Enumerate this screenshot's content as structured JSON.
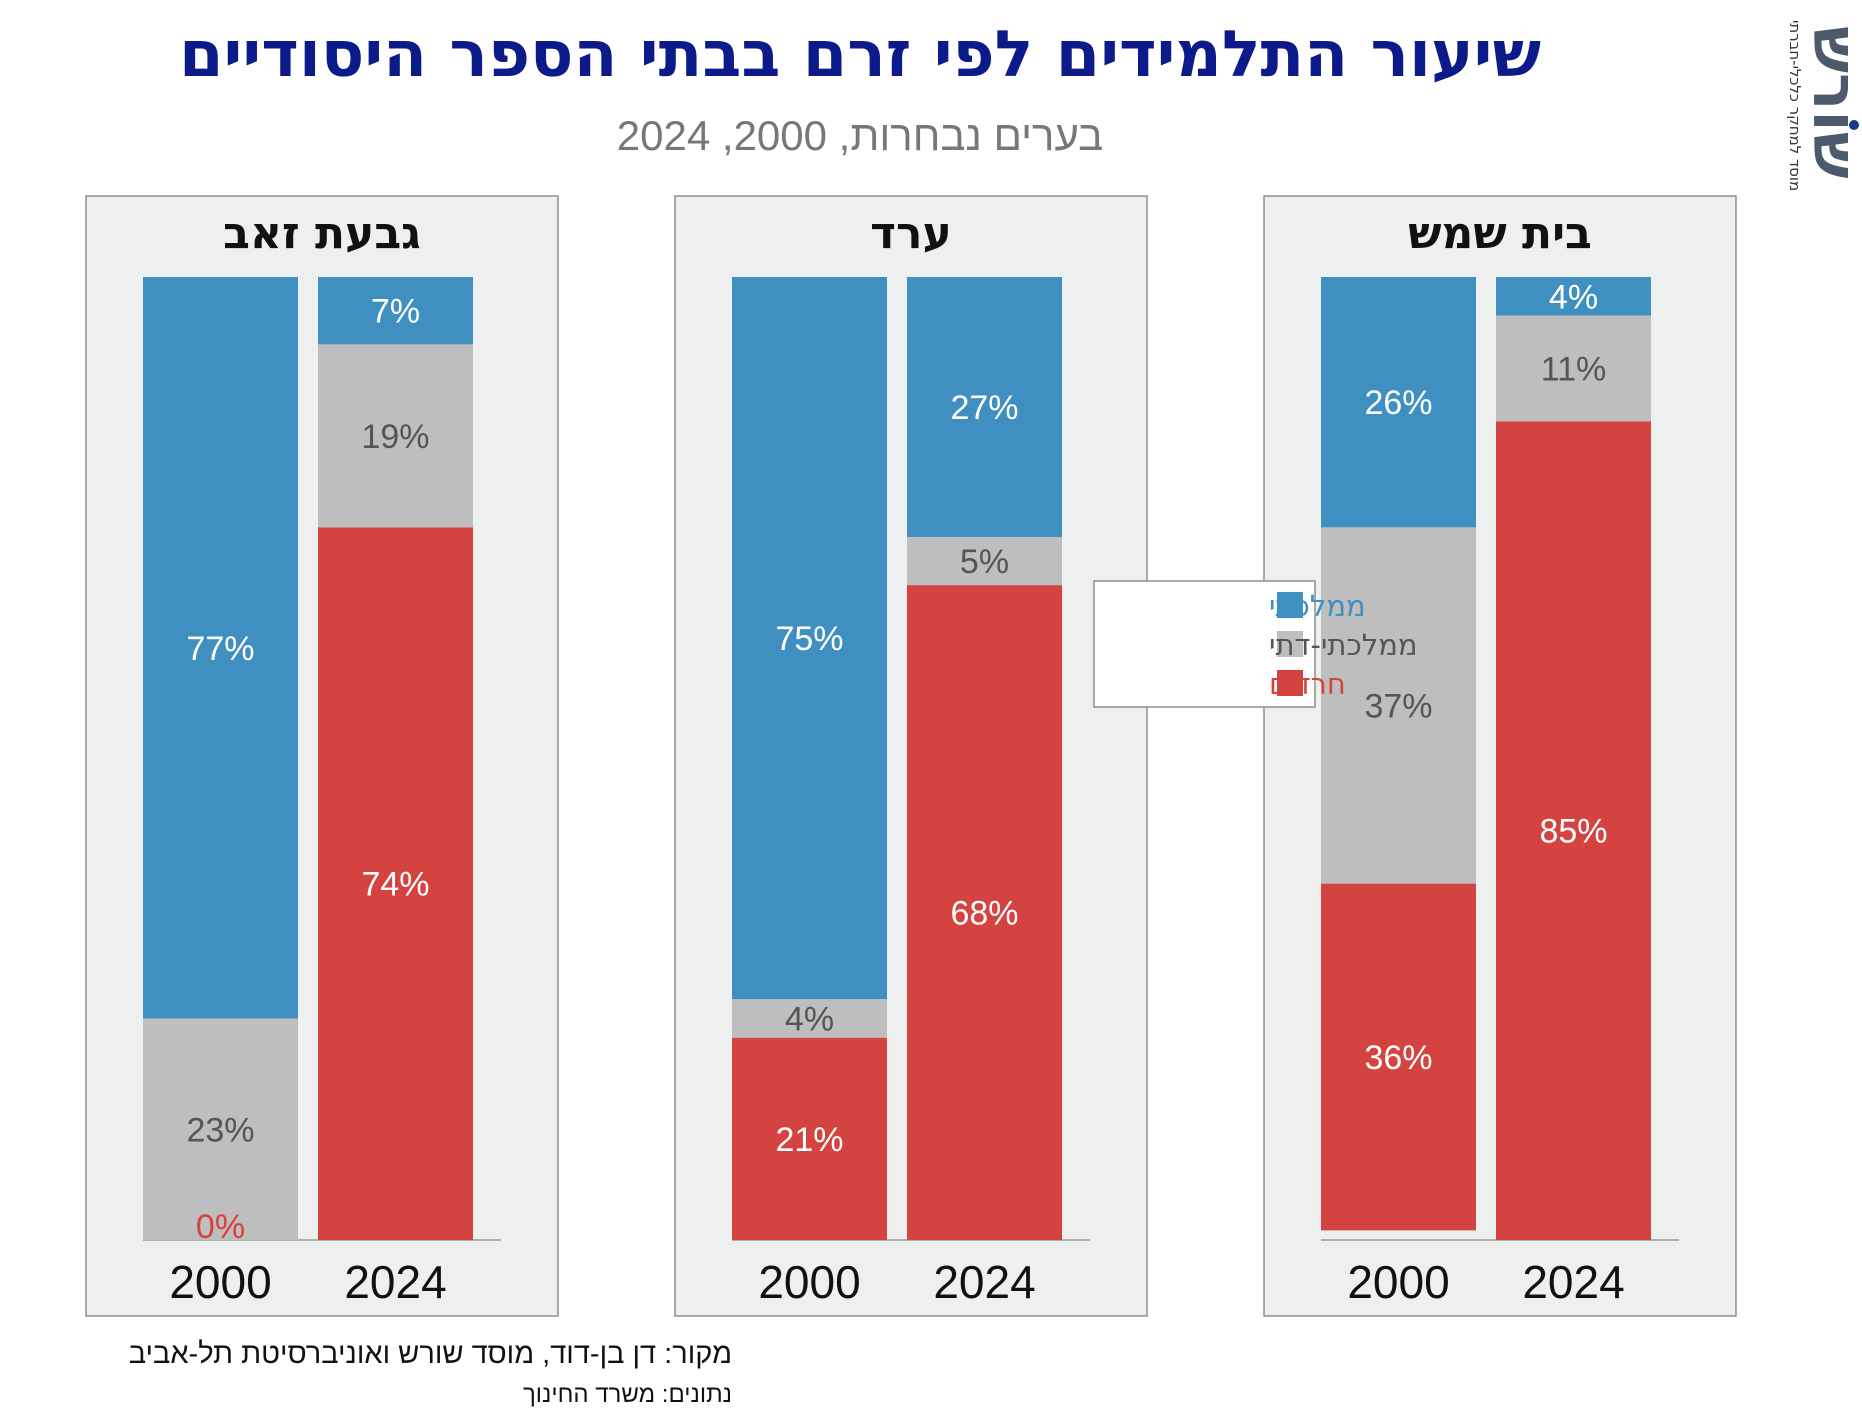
{
  "title": "שיעור התלמידים לפי זרם בבתי הספר היסודיים",
  "subtitle": "בערים נבחרות, 2000, 2024",
  "logo": {
    "name": "שורש",
    "tagline": "מוסד למחקר כלכלי-חברתי",
    "color": "#4d5a6b",
    "dot_color": "#1a3a8a"
  },
  "source_line": "מקור:  דן בן-דוד, מוסד שורש ואוניברסיטת תל-אביב",
  "data_line": "נתונים: משרד החינוך",
  "colors": {
    "mamlachti": "#3f8fc1",
    "mamlachti_dati": "#bebebe",
    "haredim": "#d4433f",
    "title": "#0d1a8a"
  },
  "chart_data": {
    "type": "bar",
    "stacked": true,
    "normalized": true,
    "ylim": [
      0,
      100
    ],
    "unit": "%",
    "legend": {
      "position": "center",
      "entries": [
        "ממלכתי",
        "ממלכתי-דתי",
        "חרדים"
      ]
    },
    "panels": [
      {
        "title": "בית שמש",
        "categories": [
          "2000",
          "2024"
        ],
        "series": [
          {
            "name": "ממלכתי",
            "values": [
              26,
              4
            ],
            "labels": [
              "26%",
              "4%"
            ]
          },
          {
            "name": "ממלכתי-דתי",
            "values": [
              37,
              11
            ],
            "labels": [
              "37%",
              "11%"
            ]
          },
          {
            "name": "חרדים",
            "values": [
              36,
              85
            ],
            "labels": [
              "36%",
              "85%"
            ]
          }
        ]
      },
      {
        "title": "ערד",
        "categories": [
          "2000",
          "2024"
        ],
        "series": [
          {
            "name": "ממלכתי",
            "values": [
              75,
              27
            ],
            "labels": [
              "75%",
              "27%"
            ]
          },
          {
            "name": "ממלכתי-דתי",
            "values": [
              4,
              5
            ],
            "labels": [
              "4%",
              "5%"
            ]
          },
          {
            "name": "חרדים",
            "values": [
              21,
              68
            ],
            "labels": [
              "21%",
              "68%"
            ]
          }
        ]
      },
      {
        "title": "גבעת זאב",
        "categories": [
          "2000",
          "2024"
        ],
        "series": [
          {
            "name": "ממלכתי",
            "values": [
              77,
              7
            ],
            "labels": [
              "77%",
              "7%"
            ]
          },
          {
            "name": "ממלכתי-דתי",
            "values": [
              23,
              19
            ],
            "labels": [
              "23%",
              "19%"
            ]
          },
          {
            "name": "חרדים",
            "values": [
              0,
              74
            ],
            "labels": [
              "0%",
              "74%"
            ]
          }
        ]
      }
    ]
  }
}
